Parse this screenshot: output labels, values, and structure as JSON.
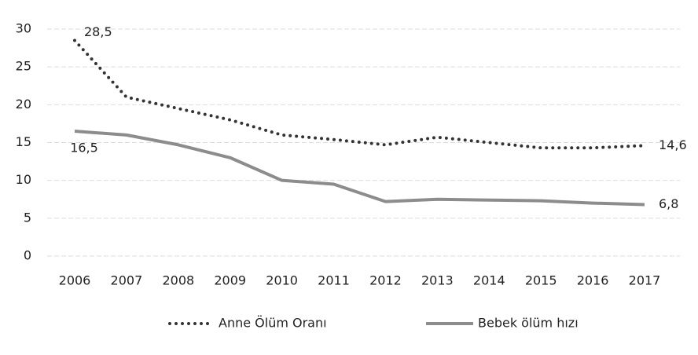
{
  "chart_data": {
    "type": "line",
    "categories": [
      "2006",
      "2007",
      "2008",
      "2009",
      "2010",
      "2011",
      "2012",
      "2013",
      "2014",
      "2015",
      "2016",
      "2017"
    ],
    "series": [
      {
        "name": "Anne Ölüm Oranı",
        "color": "#333333",
        "style": "dotted",
        "values": [
          28.5,
          21,
          19.5,
          18,
          16,
          15.4,
          14.7,
          15.7,
          15,
          14.3,
          14.3,
          14.6
        ],
        "value_labels": [
          "28,5",
          null,
          null,
          null,
          null,
          null,
          null,
          null,
          null,
          null,
          null,
          "14,6"
        ]
      },
      {
        "name": "Bebek ölüm hızı",
        "color": "#8c8c8c",
        "style": "solid",
        "values": [
          16.5,
          16,
          14.7,
          13,
          10,
          9.5,
          7.2,
          7.5,
          7.4,
          7.3,
          7,
          6.8
        ],
        "value_labels": [
          "16,5",
          null,
          null,
          null,
          null,
          null,
          null,
          null,
          null,
          null,
          null,
          "6,8"
        ]
      }
    ],
    "ylim": [
      0,
      30
    ],
    "yticks": [
      0,
      5,
      10,
      15,
      20,
      25,
      30
    ],
    "grid": true,
    "legend": "bottom"
  }
}
